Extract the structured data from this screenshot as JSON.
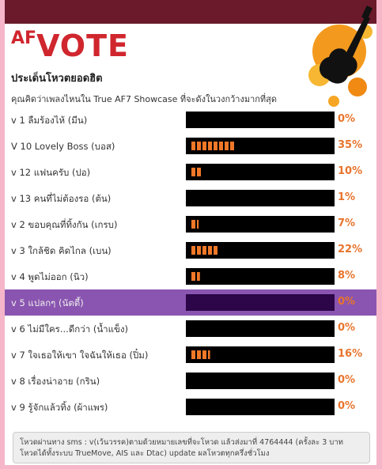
{
  "logo": {
    "prefix": "AF",
    "word": "VOTE"
  },
  "title": "ประเด็นโหวตยอดฮิต",
  "question": "คุณคิดว่าเพลงไหนใน True AF7 Showcase ที่จะดังในวงกว้างมากที่สุด",
  "options": [
    {
      "label": "v 1 ลืมร้องไห้ (มีน)",
      "value": 0,
      "value_label": "0%"
    },
    {
      "label": "V 10 Lovely Boss (บอส)",
      "value": 35,
      "value_label": "35%"
    },
    {
      "label": "v 12 แฟนครับ (ปอ)",
      "value": 10,
      "value_label": "10%"
    },
    {
      "label": "v 13 คนที่ไม่ต้องรอ (ต้น)",
      "value": 1,
      "value_label": "1%"
    },
    {
      "label": "v 2 ขอบคุณที่ทิ้งกัน (เกรบ)",
      "value": 7,
      "value_label": "7%"
    },
    {
      "label": "v 3 ใกล้ชิด คิดไกล (เบน)",
      "value": 22,
      "value_label": "22%"
    },
    {
      "label": "v 4 พูดไม่ออก (นิว)",
      "value": 8,
      "value_label": "8%"
    },
    {
      "label": "v 5 แปลกๆ (นัตตี้)",
      "value": 0,
      "value_label": "0%",
      "highlighted": true
    },
    {
      "label": "v 6 ไม่มีใคร...ดีกว่า (น้ำแข็ง)",
      "value": 0,
      "value_label": "0%"
    },
    {
      "label": "v 7 ใจเธอให้เขา ใจฉันให้เธอ (ปิ๋ม)",
      "value": 16,
      "value_label": "16%"
    },
    {
      "label": "v 8 เรื่องน่าอาย (กริน)",
      "value": 0,
      "value_label": "0%"
    },
    {
      "label": "v 9 รู้จักแล้วทิ้ง (ผ้าแพร)",
      "value": 0,
      "value_label": "0%"
    }
  ],
  "footer": "โหวดผ่านทาง sms : v(เว้นวรรค)ตามด้วยหมายเลขที่จะโหวด แล้วส่งมาที่ 4764444 (ครั้งละ 3 บาท โหวดได้ทั้งระบบ TrueMove, AIS และ Dtac) update ผลโหวตทุกครึ่งชั่วโมง"
}
